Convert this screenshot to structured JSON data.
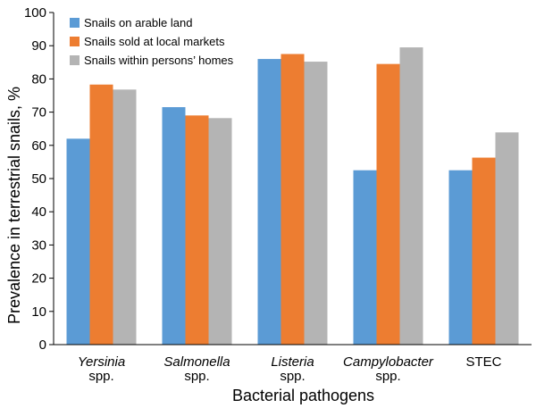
{
  "chart_data": {
    "type": "bar",
    "title": "",
    "xlabel": "Bacterial pathogens",
    "ylabel": "Prevalence in terrestrial snails, %",
    "ylim": [
      0,
      100
    ],
    "yticks": [
      0,
      10,
      20,
      30,
      40,
      50,
      60,
      70,
      80,
      90,
      100
    ],
    "grid": false,
    "legend_position": "top-left",
    "categories": [
      {
        "line1": "Yersinia",
        "line2": "spp.",
        "italic": true
      },
      {
        "line1": "Salmonella",
        "line2": "spp.",
        "italic": true
      },
      {
        "line1": "Listeria",
        "line2": "spp.",
        "italic": true
      },
      {
        "line1": "Campylobacter",
        "line2": "spp.",
        "italic": true
      },
      {
        "line1": "STEC",
        "line2": "",
        "italic": false
      }
    ],
    "series": [
      {
        "name": "Snails on arable land",
        "color": "#5b9bd5",
        "values": [
          62,
          71.5,
          86,
          52.5,
          52.5
        ]
      },
      {
        "name": "Snails sold at local markets",
        "color": "#ed7d31",
        "values": [
          78.3,
          69,
          87.5,
          84.5,
          56.3
        ]
      },
      {
        "name": "Snails within persons’ homes",
        "color": "#b4b4b4",
        "values": [
          76.8,
          68.2,
          85.2,
          89.5,
          63.9
        ]
      }
    ]
  }
}
